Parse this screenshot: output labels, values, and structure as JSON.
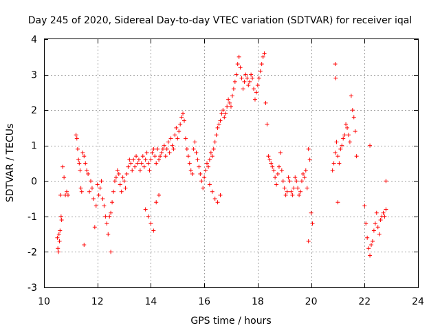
{
  "chart_data": {
    "type": "scatter",
    "title": "Day 245 of 2020, Sidereal Day-to-day VTEC variation (SDTVAR) for receiver iqal",
    "xlabel": "GPS time / hours",
    "ylabel": "SDTVAR / TECUs",
    "xlim": [
      10,
      24
    ],
    "ylim": [
      -3,
      4
    ],
    "xticks": [
      "10",
      "12",
      "14",
      "16",
      "18",
      "20",
      "22",
      "24"
    ],
    "yticks": [
      "-3",
      "-2",
      "-1",
      "0",
      "1",
      "2",
      "3",
      "4"
    ],
    "grid": true,
    "marker": "+",
    "color": "#ff0000",
    "series": [
      {
        "name": "SDTVAR",
        "x": [
          10.5,
          10.52,
          10.54,
          10.56,
          10.58,
          10.6,
          10.62,
          10.64,
          10.66,
          10.7,
          10.75,
          10.8,
          10.85,
          10.9,
          11.2,
          11.23,
          11.26,
          11.29,
          11.32,
          11.35,
          11.38,
          11.41,
          11.45,
          11.5,
          11.55,
          11.6,
          11.65,
          11.7,
          11.75,
          11.8,
          11.85,
          11.9,
          11.95,
          12.0,
          12.05,
          12.1,
          12.15,
          12.2,
          12.25,
          12.3,
          12.35,
          12.4,
          12.45,
          12.5,
          12.55,
          12.6,
          12.65,
          12.7,
          12.75,
          12.8,
          12.85,
          12.9,
          12.95,
          13.0,
          13.05,
          13.1,
          13.15,
          13.2,
          13.25,
          13.3,
          13.35,
          13.4,
          13.45,
          13.5,
          13.55,
          13.6,
          13.65,
          13.7,
          13.75,
          13.8,
          13.85,
          13.9,
          13.95,
          14.0,
          14.05,
          14.1,
          14.15,
          14.2,
          14.25,
          14.3,
          14.35,
          14.4,
          14.45,
          14.5,
          14.55,
          14.6,
          14.65,
          14.7,
          14.75,
          14.8,
          14.85,
          14.9,
          14.95,
          15.0,
          15.05,
          15.1,
          15.15,
          15.2,
          15.25,
          15.3,
          15.35,
          15.4,
          15.45,
          15.5,
          15.55,
          15.6,
          15.65,
          15.7,
          15.75,
          15.8,
          15.85,
          15.9,
          15.95,
          16.0,
          16.05,
          16.1,
          16.15,
          16.2,
          16.25,
          16.3,
          16.35,
          16.4,
          16.45,
          16.5,
          16.55,
          16.6,
          16.65,
          16.7,
          16.75,
          16.8,
          16.85,
          16.9,
          16.95,
          17.0,
          17.05,
          17.1,
          17.15,
          17.2,
          17.25,
          17.3,
          17.35,
          17.4,
          17.45,
          17.5,
          17.55,
          17.6,
          17.65,
          17.7,
          17.75,
          17.8,
          17.85,
          17.9,
          17.95,
          18.0,
          18.05,
          18.1,
          18.15,
          18.2,
          18.25,
          18.3,
          18.35,
          18.4,
          18.45,
          18.5,
          18.55,
          18.6,
          18.65,
          18.7,
          18.75,
          18.8,
          18.85,
          18.9,
          18.95,
          19.0,
          19.05,
          19.1,
          19.15,
          19.2,
          19.25,
          19.3,
          19.35,
          19.4,
          19.45,
          19.5,
          19.55,
          19.6,
          19.65,
          19.7,
          19.75,
          19.8,
          19.85,
          19.9,
          19.95,
          20.0,
          20.05,
          20.8,
          20.85,
          20.9,
          20.95,
          21.0,
          21.05,
          21.1,
          21.15,
          21.2,
          21.25,
          21.3,
          21.35,
          21.4,
          21.45,
          21.5,
          21.55,
          21.6,
          21.65,
          21.7,
          22.0,
          22.05,
          22.1,
          22.15,
          22.2,
          22.25,
          22.3,
          22.35,
          22.4,
          22.45,
          22.5,
          22.55,
          22.6,
          22.65,
          22.7,
          22.75,
          22.8,
          11.5,
          12.5,
          13.8,
          13.9,
          14.0,
          14.1,
          14.2,
          14.3,
          16.2,
          16.3,
          16.4,
          16.5,
          16.6,
          19.9,
          20.9,
          20.92,
          21.0,
          22.2,
          22.8
        ],
        "y": [
          -1.6,
          -1.9,
          -2.0,
          -1.5,
          -1.7,
          -1.4,
          -0.4,
          -1.0,
          -1.1,
          0.4,
          0.1,
          -0.4,
          -0.3,
          -0.4,
          1.3,
          1.2,
          0.9,
          0.6,
          0.5,
          0.3,
          -0.2,
          -0.3,
          0.8,
          0.7,
          0.5,
          0.3,
          0.2,
          -0.3,
          0.0,
          -0.2,
          -0.5,
          -1.3,
          -0.7,
          -0.1,
          -0.4,
          -0.2,
          0.0,
          -0.5,
          -0.7,
          -1.0,
          -1.2,
          -1.5,
          -1.0,
          -0.9,
          -0.6,
          -0.3,
          0.0,
          0.1,
          0.3,
          0.2,
          -0.1,
          -0.3,
          0.1,
          0.0,
          -0.2,
          0.2,
          0.4,
          0.6,
          0.5,
          0.3,
          0.6,
          0.4,
          0.7,
          0.5,
          0.6,
          0.3,
          0.5,
          0.7,
          0.4,
          0.6,
          0.8,
          0.5,
          0.3,
          0.6,
          0.8,
          0.9,
          0.7,
          0.5,
          0.9,
          0.6,
          0.7,
          0.8,
          0.9,
          1.0,
          0.7,
          0.9,
          1.1,
          0.8,
          1.2,
          1.0,
          0.9,
          1.3,
          1.5,
          1.2,
          1.4,
          1.6,
          1.8,
          1.9,
          1.7,
          1.2,
          0.9,
          0.7,
          0.5,
          0.3,
          0.2,
          0.9,
          1.1,
          0.8,
          0.6,
          0.4,
          0.2,
          0.0,
          -0.2,
          0.1,
          0.3,
          0.5,
          0.4,
          0.6,
          0.8,
          0.7,
          0.9,
          1.1,
          1.3,
          1.5,
          1.6,
          1.7,
          1.9,
          2.0,
          1.8,
          1.9,
          2.1,
          2.3,
          2.2,
          2.1,
          2.4,
          2.6,
          2.8,
          3.0,
          3.3,
          3.5,
          3.2,
          2.9,
          2.6,
          2.8,
          3.0,
          2.9,
          2.7,
          2.8,
          3.0,
          2.9,
          2.6,
          2.3,
          2.5,
          2.7,
          2.9,
          3.1,
          3.3,
          3.5,
          3.6,
          2.2,
          1.6,
          0.7,
          0.6,
          0.5,
          0.4,
          0.3,
          0.1,
          -0.1,
          0.2,
          0.4,
          0.8,
          0.3,
          0.0,
          -0.2,
          -0.4,
          -0.3,
          0.1,
          0.0,
          -0.3,
          -0.4,
          -0.2,
          0.1,
          0.0,
          -0.2,
          -0.4,
          -0.3,
          0.0,
          0.2,
          0.1,
          0.3,
          -0.2,
          0.9,
          0.6,
          -0.9,
          -1.2,
          0.3,
          0.5,
          0.8,
          1.1,
          0.7,
          0.5,
          0.9,
          1.0,
          1.2,
          1.3,
          1.6,
          1.5,
          1.3,
          1.1,
          2.4,
          2.0,
          1.8,
          1.4,
          0.7,
          -0.7,
          -1.2,
          -1.6,
          -1.9,
          -2.1,
          -1.8,
          -1.7,
          -1.4,
          -1.2,
          -0.9,
          -1.3,
          -1.5,
          -1.1,
          -1.0,
          -0.9,
          -1.0,
          -0.8,
          -1.8,
          -2.0,
          -0.8,
          -1.0,
          -1.2,
          -1.4,
          -0.6,
          -0.4,
          -0.1,
          -0.3,
          -0.5,
          -0.6,
          -0.4,
          -1.7,
          3.3,
          2.9,
          -0.6,
          1.0,
          0.0
        ]
      }
    ]
  }
}
